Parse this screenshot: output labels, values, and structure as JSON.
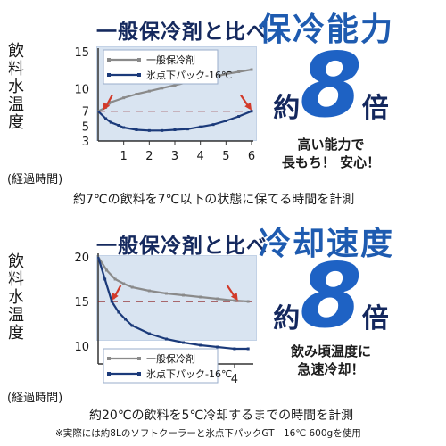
{
  "sections": [
    {
      "heading_prefix": "一般保冷剤と比べ",
      "heading_main": "保冷能力",
      "y_label": [
        "飲",
        "料",
        "水",
        "温",
        "度"
      ],
      "x_caption": "(経過時間)",
      "promo": {
        "prefix": "約",
        "number": "8",
        "suffix": "倍",
        "tagline": [
          "高い能力で",
          "長もち！ 安心！"
        ]
      },
      "caption": "約7℃の飲料を7℃以下の状態に保てる時間を計測"
    },
    {
      "heading_prefix": "一般保冷剤と比べ",
      "heading_main": "冷却速度",
      "y_label": [
        "飲",
        "料",
        "水",
        "温",
        "度"
      ],
      "x_caption": "(経過時間)",
      "promo": {
        "prefix": "約",
        "number": "8",
        "suffix": "倍",
        "tagline": [
          "飲み頃温度に",
          "急速冷却！"
        ]
      },
      "caption": "約20℃の飲料を5℃冷却するまでの時間を計測"
    }
  ],
  "footnote": "※実際には約8Lのソフトクーラーと氷点下パックGT　16℃ 600gを使用",
  "chart_data": [
    {
      "type": "line",
      "xlabel": "(経過時間)",
      "ylabel": "飲料水温度",
      "xlim": [
        0,
        6
      ],
      "ylim": [
        3,
        15
      ],
      "x_ticks": [
        1,
        2,
        3,
        4,
        5,
        6
      ],
      "y_ticks": [
        3,
        5,
        7,
        10,
        15
      ],
      "reference_line": 7,
      "legend_position": "top-left",
      "series": [
        {
          "name": "一般保冷剤",
          "color": "#8a8a8a",
          "x": [
            0,
            0.3,
            0.5,
            1,
            1.5,
            2,
            2.5,
            3,
            3.5,
            4,
            4.5,
            5,
            5.5,
            6
          ],
          "y": [
            7,
            7.5,
            8.2,
            8.8,
            9.3,
            9.7,
            10.1,
            10.5,
            10.9,
            11.3,
            11.6,
            12,
            12.3,
            12.6
          ]
        },
        {
          "name": "氷点下パック-16℃",
          "color": "#1b3a7a",
          "x": [
            0,
            0.3,
            0.5,
            0.8,
            1,
            1.5,
            2,
            2.5,
            3,
            3.5,
            4,
            4.5,
            5,
            5.5,
            6
          ],
          "y": [
            7,
            6,
            5.5,
            5.1,
            4.8,
            4.5,
            4.4,
            4.4,
            4.5,
            4.6,
            4.9,
            5.2,
            5.7,
            6.3,
            7
          ]
        }
      ],
      "markers": [
        {
          "x": 0.2,
          "y": 7
        },
        {
          "x": 6,
          "y": 7
        }
      ]
    },
    {
      "type": "line",
      "xlabel": "(経過時間)",
      "ylabel": "飲料水温度",
      "xlim": [
        0,
        4.5
      ],
      "ylim": [
        8,
        20
      ],
      "x_ticks": [
        1,
        2,
        3,
        4
      ],
      "y_ticks": [
        10,
        15,
        20
      ],
      "reference_line": 15,
      "legend_position": "bottom-left",
      "series": [
        {
          "name": "一般保冷剤",
          "color": "#8a8a8a",
          "x": [
            0,
            0.25,
            0.5,
            0.75,
            1,
            1.5,
            2,
            2.5,
            3,
            3.5,
            4,
            4.4
          ],
          "y": [
            20,
            18.5,
            17.5,
            17,
            16.6,
            16.2,
            15.9,
            15.7,
            15.5,
            15.3,
            15.1,
            15
          ]
        },
        {
          "name": "氷点下パック-16℃",
          "color": "#1b3a7a",
          "x": [
            0,
            0.2,
            0.4,
            0.6,
            0.8,
            1,
            1.5,
            2,
            2.5,
            3,
            3.5,
            4,
            4.4
          ],
          "y": [
            20,
            17.5,
            15,
            13.8,
            13,
            12.3,
            11.4,
            10.8,
            10.4,
            10.1,
            9.9,
            9.7,
            9.7
          ]
        }
      ],
      "markers": [
        {
          "x": 0.4,
          "y": 15
        },
        {
          "x": 4.1,
          "y": 15
        }
      ]
    }
  ]
}
